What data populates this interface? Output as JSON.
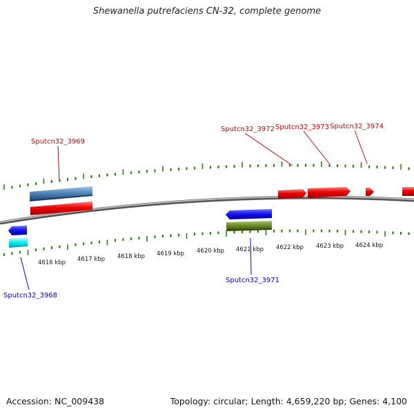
{
  "title": "Shewanella putrefaciens CN-32, complete genome",
  "footer": {
    "accession": "Accession: NC_009438",
    "topology": "Topology: circular; Length: 4,659,220 bp; Genes: 4,100"
  },
  "colors": {
    "forward_label": "#cc0000",
    "reverse_label": "#0000bb",
    "tick": "#2e7d12",
    "backbone": "#888888",
    "red_feature": "#ee0000",
    "steel_feature": "#4f86b8",
    "blue_feature": "#1010ee",
    "cyan_feature": "#00eeee",
    "olive_feature": "#6e8f2a"
  },
  "scale_labels": [
    "4616 kbp",
    "4617 kbp",
    "4618 kbp",
    "4619 kbp",
    "4620 kbp",
    "4621 kbp",
    "4622 kbp",
    "4623 kbp",
    "4624 kbp"
  ],
  "gene_labels": {
    "forward": [
      "Sputcn32_3969",
      "Sputcn32_3972",
      "Sputcn32_3973",
      "Sputcn32_3974"
    ],
    "reverse": [
      "Sputcn32_3968",
      "Sputcn32_3971"
    ]
  }
}
